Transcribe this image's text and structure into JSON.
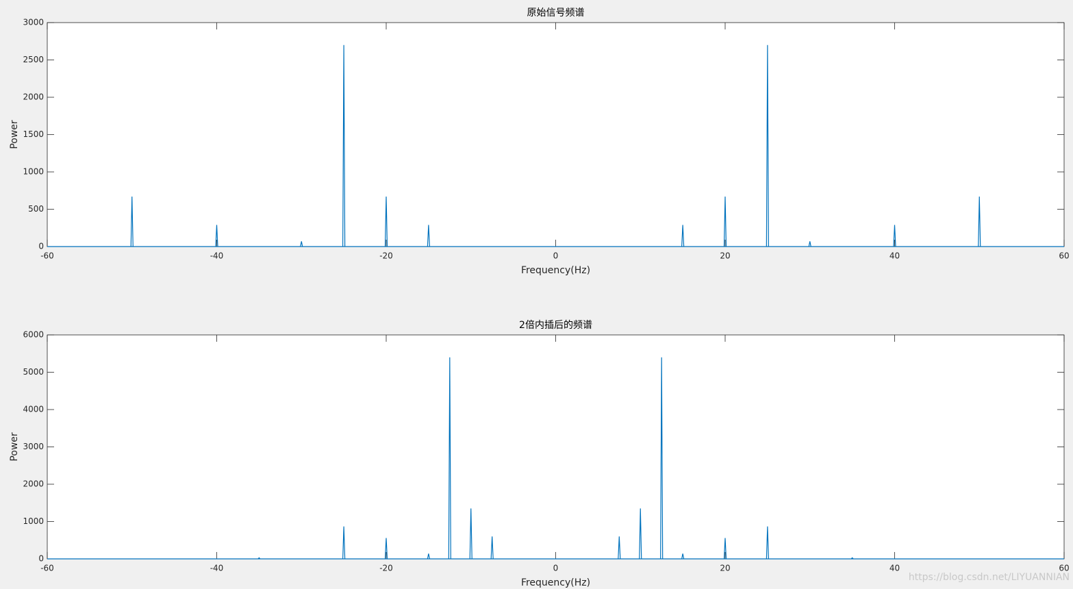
{
  "chart_data": [
    {
      "type": "spectrum",
      "title": "原始信号频谱",
      "x_label": "Frequency(Hz)",
      "y_label": "Power",
      "color": "#0072bd",
      "xlim": [
        -60,
        60
      ],
      "xticks": [
        -60,
        -40,
        -20,
        0,
        20,
        40,
        60
      ],
      "ylim": [
        0,
        3000
      ],
      "yticks": [
        0,
        500,
        1000,
        1500,
        2000,
        2500,
        3000
      ],
      "x": [
        -50,
        -40,
        -30,
        -25,
        -20,
        -15,
        15,
        20,
        25,
        30,
        40,
        50
      ],
      "values": [
        670,
        290,
        70,
        2700,
        670,
        290,
        290,
        670,
        2700,
        70,
        290,
        670
      ]
    },
    {
      "type": "spectrum",
      "title": "2倍内插后的频谱",
      "x_label": "Frequency(Hz)",
      "y_label": "Power",
      "color": "#0072bd",
      "xlim": [
        -60,
        60
      ],
      "xticks": [
        -60,
        -40,
        -20,
        0,
        20,
        40,
        60
      ],
      "ylim": [
        0,
        6000
      ],
      "yticks": [
        0,
        1000,
        2000,
        3000,
        4000,
        5000,
        6000
      ],
      "x": [
        -35,
        -25,
        -20,
        -15,
        -12.5,
        -10,
        -7.5,
        7.5,
        10,
        12.5,
        15,
        20,
        25,
        35
      ],
      "values": [
        30,
        870,
        560,
        140,
        5400,
        1350,
        600,
        600,
        1350,
        5400,
        140,
        560,
        870,
        30
      ]
    }
  ],
  "watermark": "https://blog.csdn.net/LIYUANNIAN"
}
